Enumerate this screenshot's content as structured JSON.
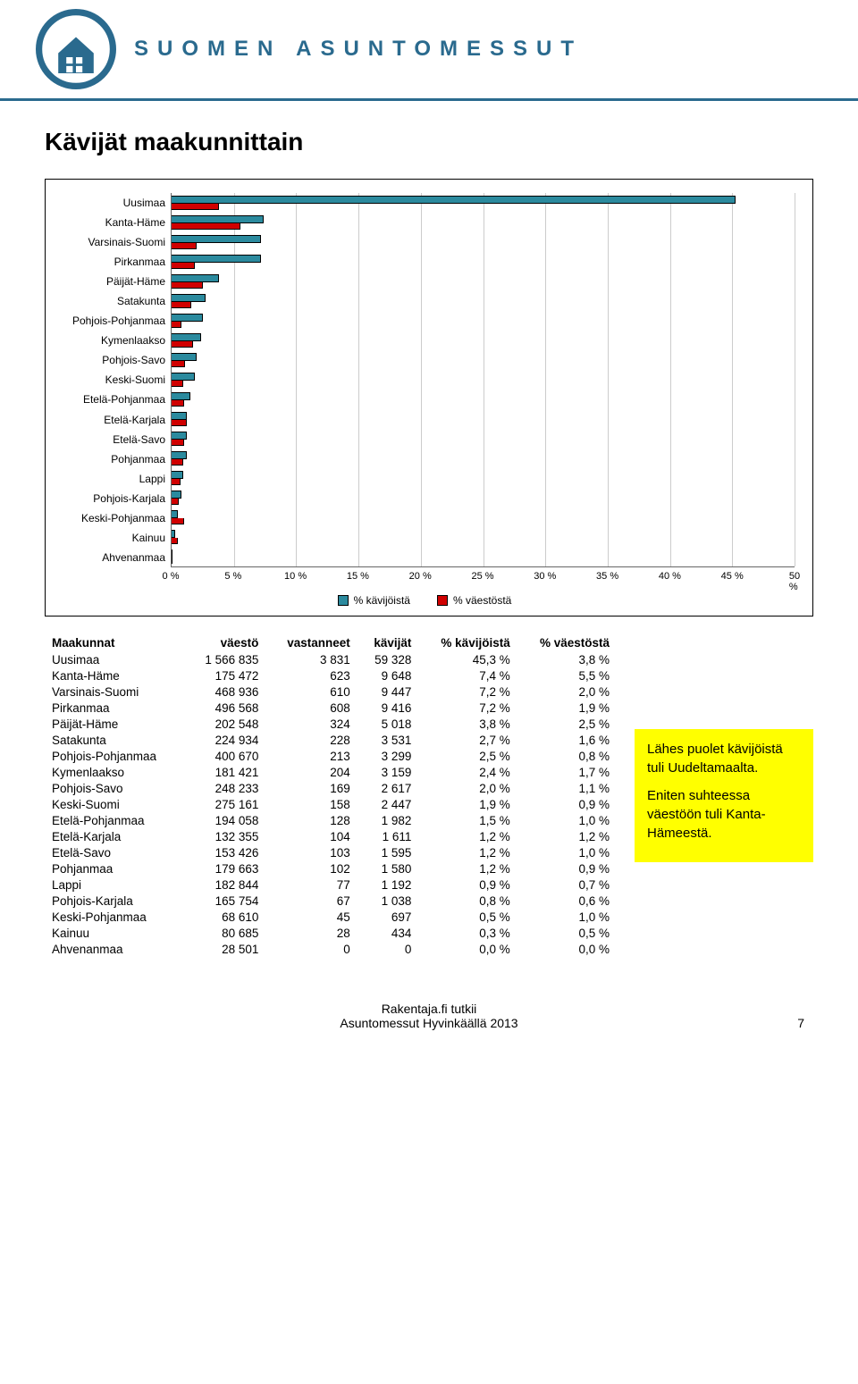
{
  "brand": "SUOMEN ASUNTOMESSUT",
  "title": "Kävijät maakunnittain",
  "chart": {
    "categories": [
      "Uusimaa",
      "Kanta-Häme",
      "Varsinais-Suomi",
      "Pirkanmaa",
      "Päijät-Häme",
      "Satakunta",
      "Pohjois-Pohjanmaa",
      "Kymenlaakso",
      "Pohjois-Savo",
      "Keski-Suomi",
      "Etelä-Pohjanmaa",
      "Etelä-Karjala",
      "Etelä-Savo",
      "Pohjanmaa",
      "Lappi",
      "Pohjois-Karjala",
      "Keski-Pohjanmaa",
      "Kainuu",
      "Ahvenanmaa"
    ],
    "series": [
      {
        "name": "% kävijöistä",
        "color": "#2b8a9e",
        "values": [
          45.3,
          7.4,
          7.2,
          7.2,
          3.8,
          2.7,
          2.5,
          2.4,
          2.0,
          1.9,
          1.5,
          1.2,
          1.2,
          1.2,
          0.9,
          0.8,
          0.5,
          0.3,
          0.0
        ]
      },
      {
        "name": "% väestöstä",
        "color": "#d00000",
        "values": [
          3.8,
          5.5,
          2.0,
          1.9,
          2.5,
          1.6,
          0.8,
          1.7,
          1.1,
          0.9,
          1.0,
          1.2,
          1.0,
          0.9,
          0.7,
          0.6,
          1.0,
          0.5,
          0.0
        ]
      }
    ],
    "xlim": 50,
    "xtick_step": 5,
    "xtick_suffix": " %",
    "grid_color": "#cccccc",
    "label_fontsize": 12
  },
  "legend": {
    "items": [
      {
        "label": "% kävijöistä",
        "color": "#2b8a9e"
      },
      {
        "label": "% väestöstä",
        "color": "#d00000"
      }
    ]
  },
  "table": {
    "header_label": "Maakunnat",
    "columns": [
      "väestö",
      "vastanneet",
      "kävijät",
      "% kävijöistä",
      "% väestöstä"
    ],
    "rows": [
      [
        "Uusimaa",
        "1 566 835",
        "3 831",
        "59 328",
        "45,3 %",
        "3,8 %"
      ],
      [
        "Kanta-Häme",
        "175 472",
        "623",
        "9 648",
        "7,4 %",
        "5,5 %"
      ],
      [
        "Varsinais-Suomi",
        "468 936",
        "610",
        "9 447",
        "7,2 %",
        "2,0 %"
      ],
      [
        "Pirkanmaa",
        "496 568",
        "608",
        "9 416",
        "7,2 %",
        "1,9 %"
      ],
      [
        "Päijät-Häme",
        "202 548",
        "324",
        "5 018",
        "3,8 %",
        "2,5 %"
      ],
      [
        "Satakunta",
        "224 934",
        "228",
        "3 531",
        "2,7 %",
        "1,6 %"
      ],
      [
        "Pohjois-Pohjanmaa",
        "400 670",
        "213",
        "3 299",
        "2,5 %",
        "0,8 %"
      ],
      [
        "Kymenlaakso",
        "181 421",
        "204",
        "3 159",
        "2,4 %",
        "1,7 %"
      ],
      [
        "Pohjois-Savo",
        "248 233",
        "169",
        "2 617",
        "2,0 %",
        "1,1 %"
      ],
      [
        "Keski-Suomi",
        "275 161",
        "158",
        "2 447",
        "1,9 %",
        "0,9 %"
      ],
      [
        "Etelä-Pohjanmaa",
        "194 058",
        "128",
        "1 982",
        "1,5 %",
        "1,0 %"
      ],
      [
        "Etelä-Karjala",
        "132 355",
        "104",
        "1 611",
        "1,2 %",
        "1,2 %"
      ],
      [
        "Etelä-Savo",
        "153 426",
        "103",
        "1 595",
        "1,2 %",
        "1,0 %"
      ],
      [
        "Pohjanmaa",
        "179 663",
        "102",
        "1 580",
        "1,2 %",
        "0,9 %"
      ],
      [
        "Lappi",
        "182 844",
        "77",
        "1 192",
        "0,9 %",
        "0,7 %"
      ],
      [
        "Pohjois-Karjala",
        "165 754",
        "67",
        "1 038",
        "0,8 %",
        "0,6 %"
      ],
      [
        "Keski-Pohjanmaa",
        "68 610",
        "45",
        "697",
        "0,5 %",
        "1,0 %"
      ],
      [
        "Kainuu",
        "80 685",
        "28",
        "434",
        "0,3 %",
        "0,5 %"
      ],
      [
        "Ahvenanmaa",
        "28 501",
        "0",
        "0",
        "0,0 %",
        "0,0 %"
      ]
    ]
  },
  "note": {
    "p1": "Lähes puolet kävijöistä tuli Uudeltamaalta.",
    "p2": "Eniten suhteessa väestöön tuli Kanta-Hämeestä.",
    "bg": "#ffff00"
  },
  "footer": {
    "line1": "Rakentaja.fi tutkii",
    "line2": "Asuntomessut Hyvinkäällä 2013",
    "pagenum": "7"
  },
  "logo": {
    "ring_color": "#2a6a8e",
    "accent_color": "#2a6a8e"
  }
}
